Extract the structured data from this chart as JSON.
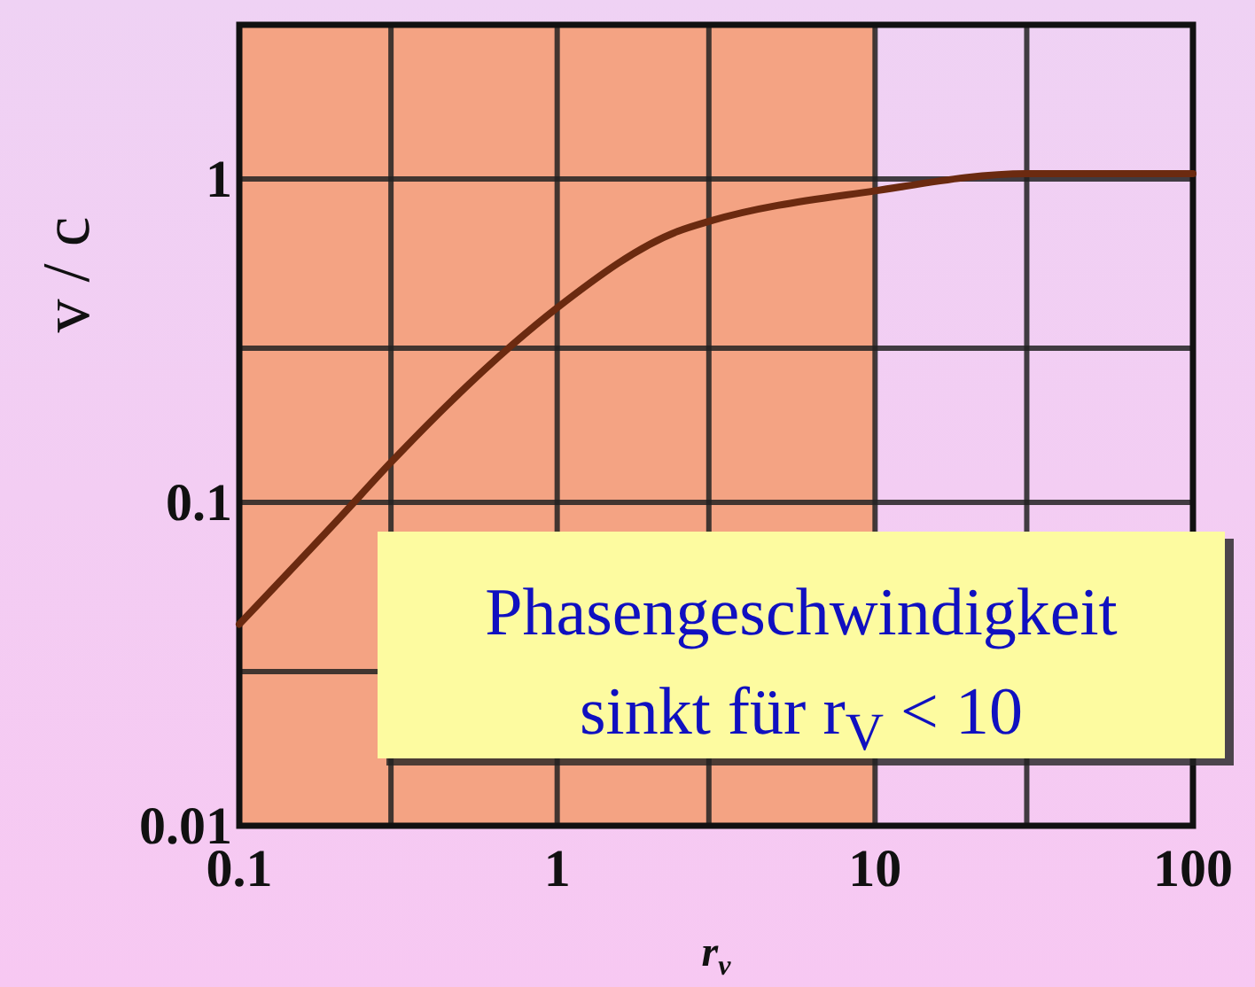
{
  "chart_data": {
    "type": "line",
    "xlabel": "r$_{v}$",
    "ylabel": "v / c",
    "log": "xy",
    "grid": true,
    "xlim": [
      0.1,
      100
    ],
    "ylim": [
      0.01,
      3
    ],
    "xticks": [
      0.1,
      {
        "value": 0.3,
        "label": null
      },
      1,
      {
        "value": 3,
        "label": null
      },
      10,
      {
        "value": 30,
        "label": null
      },
      100
    ],
    "yticks": [
      0.01,
      {
        "value": 0.03,
        "label": null
      },
      0.1,
      {
        "value": 0.3,
        "label": null
      },
      1,
      {
        "value": 3,
        "label": null
      }
    ],
    "bands": [
      {
        "axis": "x",
        "from": 0.1,
        "to": 10,
        "color": "#f4a383"
      }
    ],
    "series": [
      {
        "color": "#6b2a10",
        "x": [
          0.1,
          0.21,
          0.3,
          0.73,
          1,
          2.4,
          3,
          10,
          30,
          100
        ],
        "values": [
          0.042,
          0.091,
          0.133,
          0.31,
          0.4,
          0.69,
          0.74,
          0.92,
          1.04,
          1.04
        ]
      }
    ],
    "annotations": [
      "Phasengeschwindigkeit sinkt für r$_{V}$ < 10"
    ]
  }
}
